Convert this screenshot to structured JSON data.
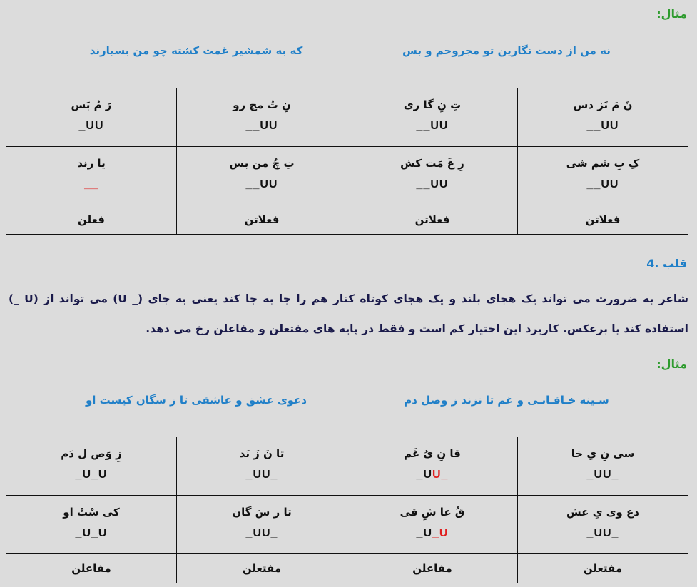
{
  "example1": {
    "label": "مثال:",
    "verse_right": "نه من از دست نگارین تو مجروحم و بس",
    "verse_left": "که به شمشیر غمت کشته چو من بسیارند",
    "rows": [
      [
        {
          "syllables": "نَ مَ نَز دس",
          "meter": [
            {
              "t": "__UU",
              "c": "#111111"
            }
          ]
        },
        {
          "syllables": "تِ نِ گا ری",
          "meter": [
            {
              "t": "__UU",
              "c": "#111111"
            }
          ]
        },
        {
          "syllables": "نِ تُ مج رو",
          "meter": [
            {
              "t": "__UU",
              "c": "#111111"
            }
          ]
        },
        {
          "syllables": "رَ مُ بَس",
          "meter": [
            {
              "t": "_UU",
              "c": "#111111"
            }
          ]
        }
      ],
      [
        {
          "syllables": "کِ بِ شم شی",
          "meter": [
            {
              "t": "__UU",
              "c": "#111111"
            }
          ]
        },
        {
          "syllables": "رِ غَ مَت کش",
          "meter": [
            {
              "t": "__UU",
              "c": "#111111"
            }
          ]
        },
        {
          "syllables": "تِ چُ من بس",
          "meter": [
            {
              "t": "__UU",
              "c": "#111111"
            }
          ]
        },
        {
          "syllables": "یا رند",
          "meter": [
            {
              "t": "__",
              "c": "#e02020"
            }
          ]
        }
      ]
    ],
    "feet": [
      "فعلاتن",
      "فعلاتن",
      "فعلاتن",
      "فعلن"
    ]
  },
  "section": {
    "heading": "4. قلب",
    "line1": "شاعر به ضرورت می تواند یک هجای بلند و یک هجای کوتاه کنار هم را جا به جا کند یعنی به جای (_ U) می تواند از (U _)",
    "line2": "استفاده کند یا برعکس. کاربرد این اختیار کم است و فقط در پایه های مفتعلن و مفاعلن رخ می دهد."
  },
  "example2": {
    "label": "مثال:",
    "verse_right": "سـینه خـاقـانـی و غم تا نزند ز وصل دم",
    "verse_left": "دعوی عشق و عاشقی تا ز سگان کیست او",
    "rows": [
      [
        {
          "syllables": "سی نِ یِ خا",
          "meter": [
            {
              "t": "_UU_",
              "c": "#111111"
            }
          ]
        },
        {
          "syllables": "قا نِ یُ غَم",
          "meter": [
            {
              "t": "_U",
              "c": "#111111"
            },
            {
              "t": "U_",
              "c": "#e02020"
            }
          ]
        },
        {
          "syllables": "تا نَ زَ نَد",
          "meter": [
            {
              "t": "_UU_",
              "c": "#111111"
            }
          ]
        },
        {
          "syllables": "زِ وَص ل دَم",
          "meter": [
            {
              "t": "_U_U",
              "c": "#111111"
            }
          ]
        }
      ],
      [
        {
          "syllables": "دع وی یِ عش",
          "meter": [
            {
              "t": "_UU_",
              "c": "#111111"
            }
          ]
        },
        {
          "syllables": "قُ عا شِ قی",
          "meter": [
            {
              "t": "_U",
              "c": "#111111"
            },
            {
              "t": "_U",
              "c": "#e02020"
            }
          ]
        },
        {
          "syllables": "تا ز سَ گان",
          "meter": [
            {
              "t": "_UU_",
              "c": "#111111"
            }
          ]
        },
        {
          "syllables": "کی سْتْ او",
          "meter": [
            {
              "t": "_U_U",
              "c": "#111111"
            }
          ]
        }
      ]
    ],
    "feet": [
      "مفتعلن",
      "مفاعلن",
      "مفتعلن",
      "مفاعلن"
    ]
  },
  "colors": {
    "label": "#2e9b2e",
    "verse": "#1f7fc8",
    "body": "#1a1a4a",
    "changed_meter": "#e02020"
  }
}
